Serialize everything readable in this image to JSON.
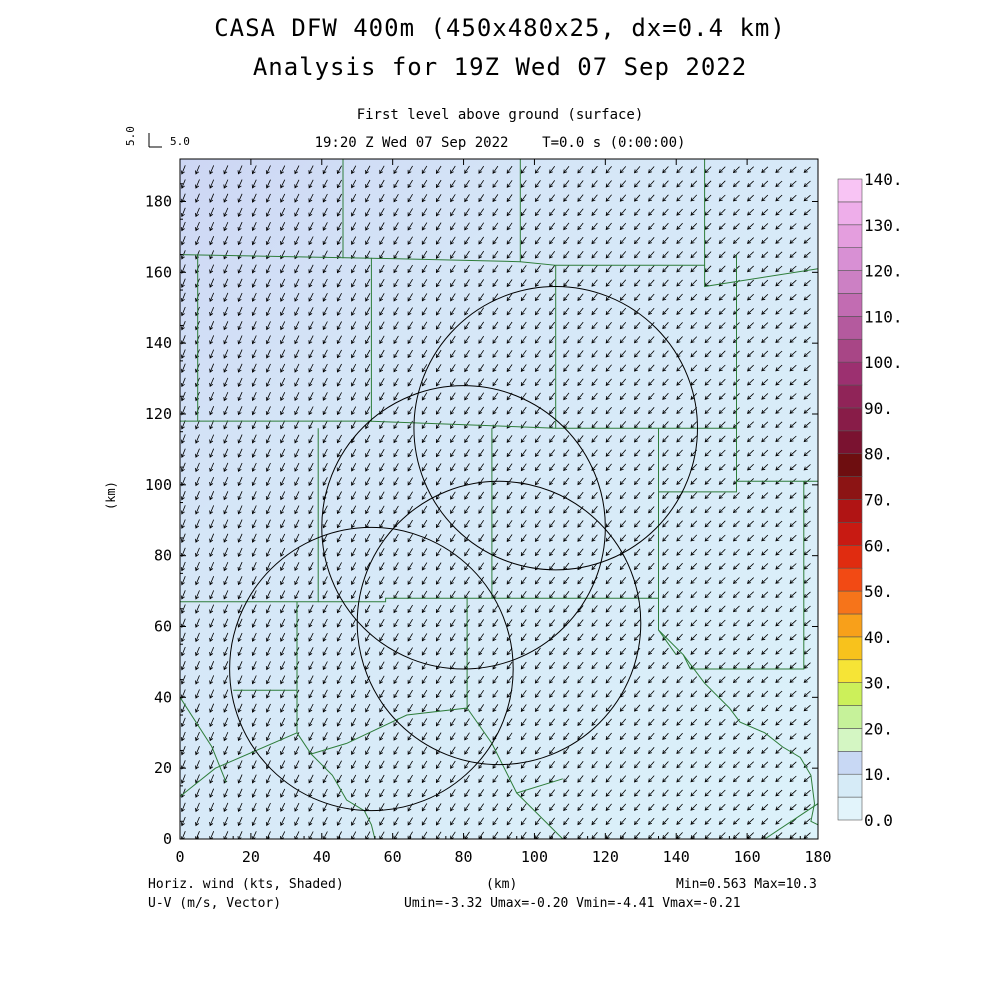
{
  "title_line1": "CASA DFW 400m (450x480x25, dx=0.4 km)",
  "title_line2": "Analysis for 19Z Wed 07 Sep 2022",
  "subtitle_line1": "First level above ground (surface)",
  "subtitle_line2": "19:20 Z Wed 07 Sep 2022    T=0.0 s (0:00:00)",
  "reference_vector": {
    "label_h": "5.0",
    "label_v": "5.0"
  },
  "footer": {
    "left_line1": "Horiz. wind (kts, Shaded)",
    "left_line2": "U-V (m/s, Vector)",
    "minmax": "Min=0.563 Max=10.3",
    "uv_range": "Umin=-3.32 Umax=-0.20 Vmin=-4.41 Vmax=-0.21"
  },
  "colors": {
    "field": "#d6ebf7",
    "field_upper_left": "#cfd8f5",
    "boundaries": "#2e7d3a",
    "vectors": "#000000"
  },
  "chart_data": {
    "type": "heatmap",
    "xlabel": "(km)",
    "ylabel": "(km)",
    "xlim": [
      0,
      180
    ],
    "ylim": [
      0,
      192
    ],
    "xticks": [
      0,
      20,
      40,
      60,
      80,
      100,
      120,
      140,
      160,
      180
    ],
    "yticks": [
      0,
      20,
      40,
      60,
      80,
      100,
      120,
      140,
      160,
      180
    ],
    "wind_vector": {
      "u_mean": -1.7,
      "v_mean": -2.3,
      "spacing_km": 4
    },
    "radar_range_rings": [
      {
        "center_km": [
          106,
          116
        ],
        "radius_km": 40
      },
      {
        "center_km": [
          80,
          88
        ],
        "radius_km": 40
      },
      {
        "center_km": [
          90,
          61
        ],
        "radius_km": 40
      },
      {
        "center_km": [
          54,
          48
        ],
        "radius_km": 40
      }
    ],
    "colorbar": {
      "levels": [
        "0.0",
        "10.",
        "20.",
        "30.",
        "40.",
        "50.",
        "60.",
        "70.",
        "80.",
        "90.",
        "100.",
        "110.",
        "120.",
        "130.",
        "140."
      ],
      "colors": [
        "#e2f4fb",
        "#d6ebf7",
        "#c8d8f4",
        "#d4f6c3",
        "#c6f29a",
        "#ccf05a",
        "#f6e436",
        "#f8c21c",
        "#f8a01a",
        "#f6741a",
        "#f24a14",
        "#e02c10",
        "#c81a12",
        "#b01414",
        "#8c1414",
        "#6e0e10",
        "#7a1230",
        "#881c48",
        "#902458",
        "#9c3070",
        "#a84686",
        "#b45a9e",
        "#c26cb2",
        "#cc80c4",
        "#d890d4",
        "#e49ede",
        "#eeaeea",
        "#f8c4f4"
      ]
    }
  }
}
